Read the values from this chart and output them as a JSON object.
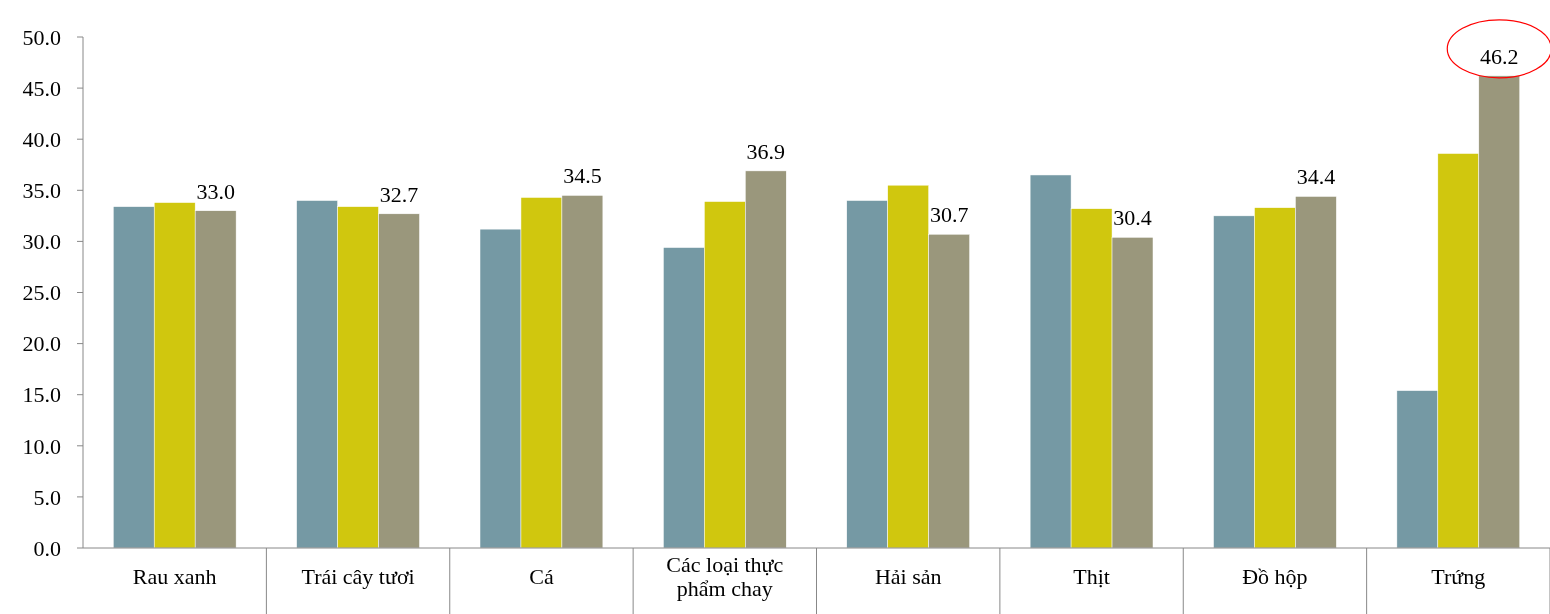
{
  "chart_data": {
    "type": "bar",
    "categories": [
      "Rau xanh",
      "Trái cây tươi",
      "Cá",
      "Các loại thực phẩm chay",
      "Hải sản",
      "Thịt",
      "Đồ hộp",
      "Trứng"
    ],
    "series": [
      {
        "color": "#7599a4",
        "values": [
          33.4,
          34.0,
          31.2,
          29.4,
          34.0,
          36.5,
          32.5,
          15.4
        ]
      },
      {
        "color": "#d0c70e",
        "values": [
          33.8,
          33.4,
          34.3,
          33.9,
          35.5,
          33.2,
          33.3,
          38.6
        ]
      },
      {
        "color": "#9a977c",
        "values": [
          33.0,
          32.7,
          34.5,
          36.9,
          30.7,
          30.4,
          34.4,
          46.2
        ],
        "value_labels": [
          "33.0",
          "32.7",
          "34.5",
          "36.9",
          "30.7",
          "30.4",
          "34.4",
          "46.2"
        ]
      }
    ],
    "ylim": [
      0,
      50
    ],
    "yticks": [
      {
        "value": 0,
        "label": "0.0"
      },
      {
        "value": 5,
        "label": "5.0"
      },
      {
        "value": 10,
        "label": "10.0"
      },
      {
        "value": 15,
        "label": "15.0"
      },
      {
        "value": 20,
        "label": "20.0"
      },
      {
        "value": 25,
        "label": "25.0"
      },
      {
        "value": 30,
        "label": "30.0"
      },
      {
        "value": 35,
        "label": "35.0"
      },
      {
        "value": 40,
        "label": "40.0"
      },
      {
        "value": 45,
        "label": "45.0"
      },
      {
        "value": 50,
        "label": "50.0"
      }
    ],
    "grid": false
  }
}
